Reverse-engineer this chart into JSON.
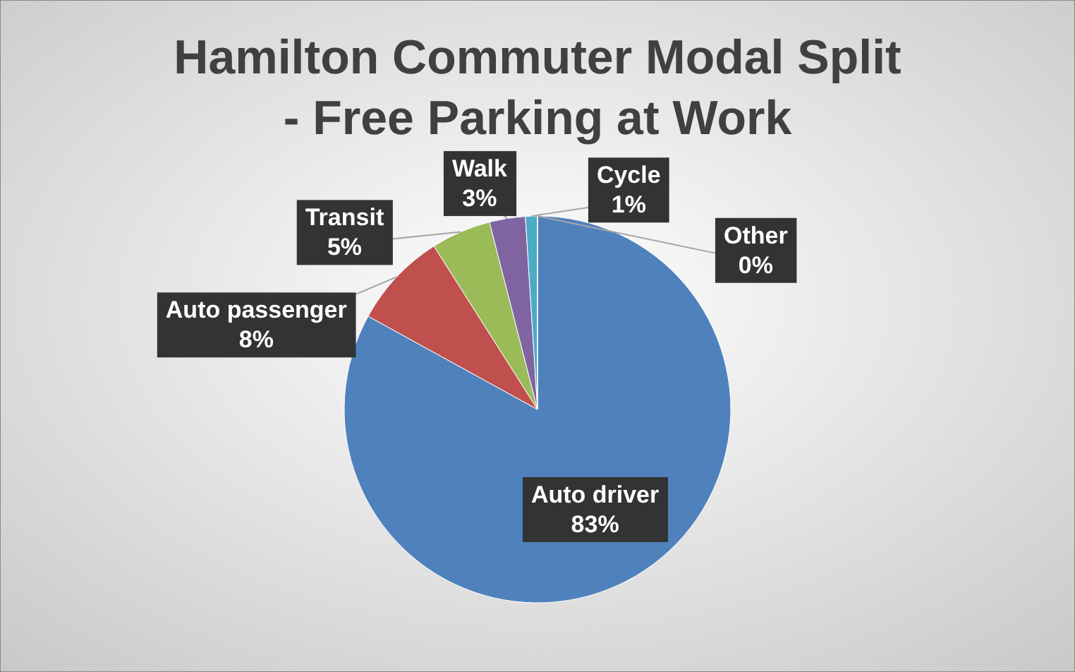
{
  "chart_data": {
    "type": "pie",
    "title": "Hamilton Commuter Modal Split - Free Parking at Work",
    "categories": [
      "Auto driver",
      "Auto passenger",
      "Transit",
      "Walk",
      "Cycle",
      "Other"
    ],
    "values": [
      83,
      8,
      5,
      3,
      1,
      0
    ],
    "value_labels": [
      "83%",
      "8%",
      "5%",
      "3%",
      "1%",
      "0%"
    ],
    "colors": [
      "#4f81bd",
      "#c0504d",
      "#9bbb59",
      "#8064a2",
      "#4bacc6",
      "#f79646"
    ]
  }
}
